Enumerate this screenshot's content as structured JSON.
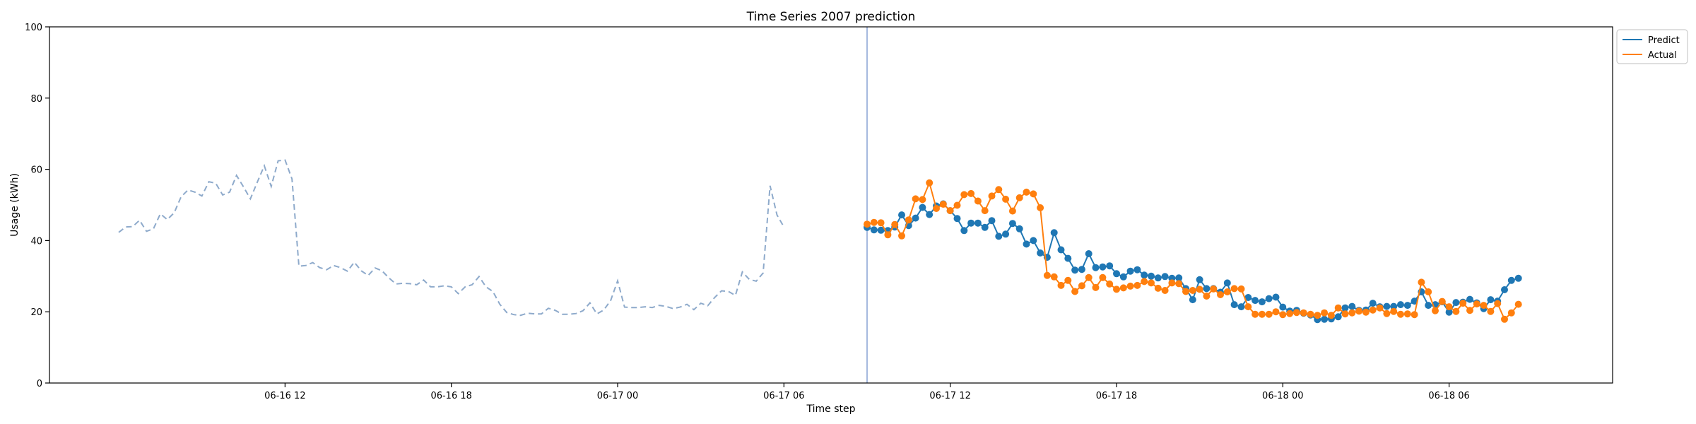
{
  "chart_data": {
    "type": "line",
    "title": "Time Series 2007 prediction",
    "xlabel": "Time step",
    "ylabel": "Usage (kWh)",
    "ylim": [
      0,
      100
    ],
    "xlim": [
      "2007-06-16 03:30",
      "2007-06-18 11:54"
    ],
    "grid": false,
    "legend_position": "top-right outside",
    "y_ticks": [
      "0",
      "20",
      "40",
      "60",
      "80",
      "100"
    ],
    "x_ticks": [
      {
        "label": "06-16 12",
        "t": "2007-06-16 12:00"
      },
      {
        "label": "06-16 18",
        "t": "2007-06-16 18:00"
      },
      {
        "label": "06-17 00",
        "t": "2007-06-17 00:00"
      },
      {
        "label": "06-17 06",
        "t": "2007-06-17 06:00"
      },
      {
        "label": "06-17 12",
        "t": "2007-06-17 12:00"
      },
      {
        "label": "06-17 18",
        "t": "2007-06-17 18:00"
      },
      {
        "label": "06-18 00",
        "t": "2007-06-18 00:00"
      },
      {
        "label": "06-18 06",
        "t": "2007-06-18 06:00"
      }
    ],
    "forecast_start": "2007-06-17 09:00",
    "history": {
      "start": "2007-06-16 06:00",
      "step_minutes": 15,
      "color": "#8eaacb",
      "values": [
        42.3,
        43.8,
        43.9,
        45.7,
        42.6,
        43.3,
        47.5,
        45.9,
        47.8,
        52.3,
        54.2,
        53.6,
        52.5,
        56.5,
        56.1,
        52.8,
        53.6,
        58.3,
        55.1,
        51.7,
        56.4,
        61.0,
        55.2,
        62.4,
        62.6,
        57.3,
        32.8,
        33.0,
        33.8,
        32.4,
        31.8,
        33.0,
        32.4,
        31.4,
        33.9,
        31.5,
        30.2,
        32.3,
        31.5,
        29.5,
        27.8,
        28.0,
        27.9,
        27.6,
        28.9,
        27.0,
        27.0,
        27.3,
        27.0,
        25.1,
        27.0,
        27.6,
        29.9,
        27.0,
        25.7,
        22.1,
        19.8,
        19.2,
        19.0,
        19.6,
        19.4,
        19.4,
        21.0,
        20.4,
        19.3,
        19.3,
        19.5,
        20.3,
        22.5,
        19.4,
        20.5,
        23.2,
        28.7,
        21.3,
        21.2,
        21.2,
        21.4,
        21.2,
        21.8,
        21.5,
        20.9,
        21.3,
        22.1,
        20.6,
        22.4,
        21.7,
        24.0,
        25.9,
        25.7,
        24.6,
        31.2,
        29.1,
        28.6,
        30.9,
        55.4,
        47.2,
        43.8
      ]
    },
    "series": [
      {
        "name": "Predict",
        "color": "#1f77b4",
        "start": "2007-06-17 09:00",
        "step_minutes": 15,
        "values": [
          43.7,
          43.0,
          42.9,
          42.8,
          43.8,
          47.2,
          44.2,
          46.3,
          49.3,
          47.3,
          49.7,
          50.3,
          48.4,
          46.2,
          42.8,
          44.9,
          44.9,
          43.7,
          45.6,
          41.2,
          41.8,
          44.8,
          43.3,
          39.0,
          40.0,
          36.5,
          35.3,
          42.2,
          37.4,
          35.0,
          31.7,
          31.9,
          36.3,
          32.4,
          32.6,
          32.9,
          30.7,
          29.8,
          31.4,
          31.8,
          30.3,
          30.0,
          29.5,
          29.9,
          29.4,
          29.5,
          26.5,
          23.4,
          29.0,
          26.5,
          26.5,
          25.5,
          28.1,
          22.0,
          21.4,
          24.0,
          23.2,
          22.8,
          23.7,
          24.1,
          21.3,
          20.2,
          20.4,
          19.6,
          19.1,
          17.8,
          17.9,
          18.0,
          18.6,
          21.1,
          21.5,
          20.4,
          20.5,
          22.4,
          21.4,
          21.5,
          21.5,
          22.0,
          21.8,
          23.0,
          25.6,
          21.8,
          22.0,
          22.8,
          19.9,
          22.6,
          22.7,
          23.5,
          22.5,
          20.9,
          23.4,
          23.0,
          26.2,
          28.8,
          29.4
        ]
      },
      {
        "name": "Actual",
        "color": "#ff7f0e",
        "start": "2007-06-17 09:00",
        "step_minutes": 15,
        "values": [
          44.6,
          45.1,
          45.0,
          41.6,
          44.5,
          41.3,
          45.8,
          51.7,
          51.5,
          56.2,
          49.0,
          50.2,
          48.4,
          49.9,
          52.9,
          53.2,
          51.1,
          48.4,
          52.5,
          54.3,
          51.6,
          48.3,
          52.0,
          53.6,
          53.1,
          49.2,
          30.2,
          29.8,
          27.4,
          28.8,
          25.7,
          27.3,
          29.6,
          26.8,
          29.6,
          27.8,
          26.3,
          26.7,
          27.2,
          27.4,
          28.5,
          28.1,
          26.6,
          26.0,
          28.1,
          27.9,
          25.7,
          26.0,
          26.3,
          24.4,
          26.4,
          24.8,
          25.6,
          26.5,
          26.4,
          21.4,
          19.3,
          19.3,
          19.3,
          20.0,
          19.2,
          19.5,
          19.8,
          19.7,
          19.3,
          19.0,
          19.7,
          19.0,
          21.1,
          19.4,
          19.7,
          20.2,
          19.9,
          20.5,
          21.1,
          19.5,
          20.1,
          19.3,
          19.4,
          19.2,
          28.3,
          25.6,
          20.3,
          22.9,
          21.4,
          20.1,
          22.4,
          20.4,
          22.2,
          21.8,
          20.1,
          22.3,
          17.9,
          19.7,
          22.1
        ]
      }
    ]
  }
}
